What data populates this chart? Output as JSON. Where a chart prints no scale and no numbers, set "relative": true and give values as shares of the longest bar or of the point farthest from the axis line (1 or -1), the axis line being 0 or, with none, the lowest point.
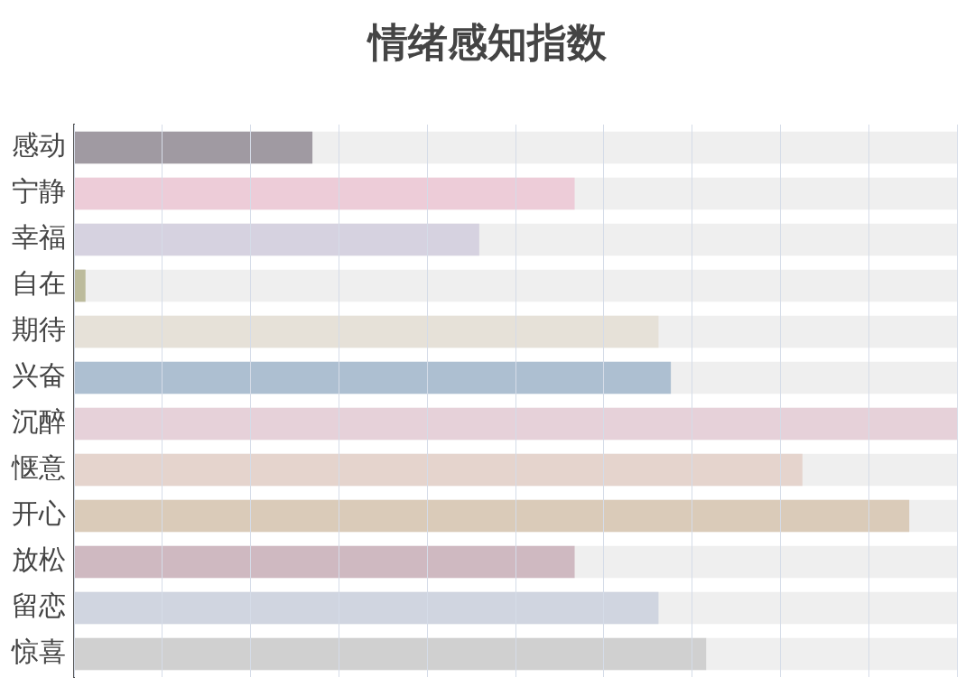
{
  "chart_data": {
    "type": "bar",
    "orientation": "horizontal",
    "relative": true,
    "title": "情绪感知指数",
    "categories": [
      "感动",
      "宁静",
      "幸福",
      "自在",
      "期待",
      "兴奋",
      "沉醉",
      "惬意",
      "开心",
      "放松",
      "留恋",
      "惊喜"
    ],
    "values": [
      0.27,
      0.567,
      0.459,
      0.013,
      0.662,
      0.676,
      1,
      0.825,
      0.946,
      0.567,
      0.662,
      0.716
    ],
    "colors": [
      "#a09aa2",
      "#edccd8",
      "#d6d2e0",
      "#bcbb9c",
      "#e6e1d8",
      "#adbfd1",
      "#e6d1d9",
      "#e5d4cd",
      "#dacbb9",
      "#cfb9c1",
      "#d0d5e0",
      "#d0d0d0"
    ],
    "grid": "x",
    "legend": false
  }
}
